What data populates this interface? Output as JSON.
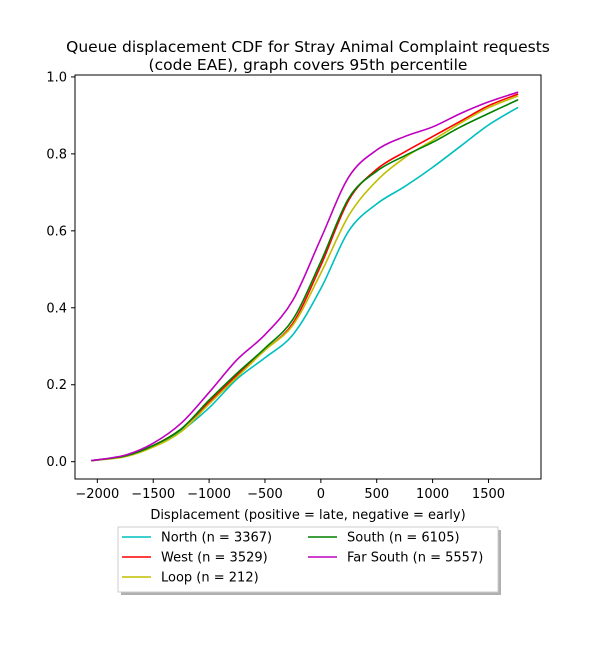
{
  "chart_data": {
    "type": "line",
    "title_line1": "Queue displacement CDF for Stray Animal Complaint  requests",
    "title_line2": "(code EAE), graph covers 95th percentile",
    "xlabel": "Displacement (positive = late, negative = early)",
    "ylabel": "",
    "xlim": [
      -2200,
      1970
    ],
    "ylim": [
      -0.045,
      1.005
    ],
    "x_ticks": [
      -2000,
      -1500,
      -1000,
      -500,
      0,
      500,
      1000,
      1500
    ],
    "x_tick_labels": [
      "−2000",
      "−1500",
      "−1000",
      "−500",
      "0",
      "500",
      "1000",
      "1500"
    ],
    "y_ticks": [
      0.0,
      0.2,
      0.4,
      0.6,
      0.8,
      1.0
    ],
    "y_tick_labels": [
      "0.0",
      "0.2",
      "0.4",
      "0.6",
      "0.8",
      "1.0"
    ],
    "legend_placement": "below plot, two columns",
    "x": [
      -2050,
      -1750,
      -1500,
      -1250,
      -1000,
      -750,
      -500,
      -250,
      0,
      250,
      500,
      750,
      1000,
      1250,
      1500,
      1760
    ],
    "series": [
      {
        "name": "North (n = 3367)",
        "color": "#00bfbf",
        "values": [
          0.003,
          0.015,
          0.04,
          0.08,
          0.14,
          0.215,
          0.27,
          0.33,
          0.45,
          0.6,
          0.67,
          0.715,
          0.765,
          0.82,
          0.875,
          0.92
        ]
      },
      {
        "name": "West (n = 3529)",
        "color": "#ff0000",
        "values": [
          0.003,
          0.015,
          0.042,
          0.085,
          0.155,
          0.225,
          0.29,
          0.36,
          0.51,
          0.68,
          0.76,
          0.805,
          0.845,
          0.885,
          0.925,
          0.955
        ]
      },
      {
        "name": "Loop (n = 212)",
        "color": "#bfbf00",
        "values": [
          0.003,
          0.013,
          0.038,
          0.078,
          0.15,
          0.22,
          0.29,
          0.355,
          0.49,
          0.64,
          0.73,
          0.79,
          0.835,
          0.88,
          0.92,
          0.95
        ]
      },
      {
        "name": "South (n = 6105)",
        "color": "#008000",
        "values": [
          0.003,
          0.015,
          0.042,
          0.085,
          0.16,
          0.23,
          0.295,
          0.37,
          0.52,
          0.685,
          0.755,
          0.795,
          0.83,
          0.87,
          0.905,
          0.94
        ]
      },
      {
        "name": "Far South (n = 5557)",
        "color": "#bf00bf",
        "values": [
          0.003,
          0.017,
          0.048,
          0.1,
          0.18,
          0.265,
          0.33,
          0.42,
          0.58,
          0.74,
          0.81,
          0.845,
          0.87,
          0.905,
          0.935,
          0.96
        ]
      }
    ]
  }
}
